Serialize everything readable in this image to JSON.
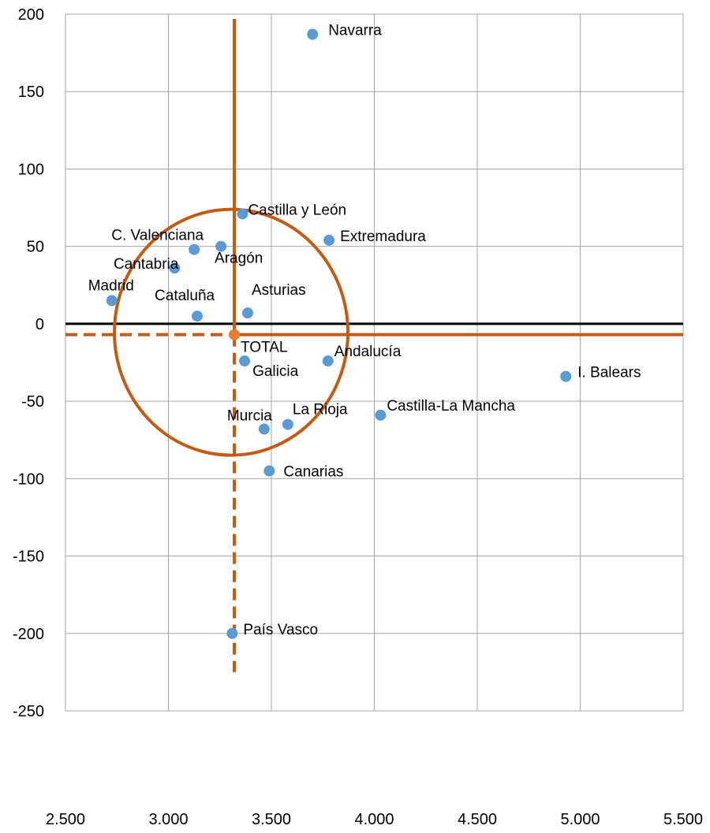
{
  "chart_data": {
    "type": "scatter",
    "title": "",
    "xlabel": "",
    "ylabel": "",
    "xlim": [
      2500,
      5500
    ],
    "ylim": [
      -250,
      200
    ],
    "x_ticks": [
      2500,
      3000,
      3500,
      4000,
      4500,
      5000,
      5500
    ],
    "x_tick_labels": [
      "2.500",
      "3.000",
      "3.500",
      "4.000",
      "4.500",
      "5.000",
      "5.500"
    ],
    "y_ticks": [
      -250,
      -200,
      -150,
      -100,
      -50,
      0,
      50,
      100,
      150,
      200
    ],
    "y_tick_labels": [
      "-250",
      "-200",
      "-150",
      "-100",
      "-50",
      "0",
      "50",
      "100",
      "150",
      "200"
    ],
    "grid": true,
    "colors": {
      "points": "#5B9BD5",
      "reference": "#C55A11",
      "reference_point": "#ED7D31",
      "zero_line": "#000000",
      "grid": "#A6A6A6"
    },
    "points": [
      {
        "label": "Navarra",
        "x": 3700,
        "y": 187
      },
      {
        "label": "Castilla y León",
        "x": 3360,
        "y": 71
      },
      {
        "label": "Extremadura",
        "x": 3780,
        "y": 54
      },
      {
        "label": "C. Valenciana",
        "x": 3125,
        "y": 48
      },
      {
        "label": "Aragón",
        "x": 3255,
        "y": 50
      },
      {
        "label": "Cantabria",
        "x": 3030,
        "y": 36
      },
      {
        "label": "Madrid",
        "x": 2725,
        "y": 15
      },
      {
        "label": "Cataluña",
        "x": 3140,
        "y": 5
      },
      {
        "label": "Asturias",
        "x": 3385,
        "y": 7
      },
      {
        "label": "Andalucía",
        "x": 3775,
        "y": -24
      },
      {
        "label": "Galicia",
        "x": 3370,
        "y": -24
      },
      {
        "label": "I. Balears",
        "x": 4930,
        "y": -34
      },
      {
        "label": "Castilla-La Mancha",
        "x": 4030,
        "y": -59
      },
      {
        "label": "La Rioja",
        "x": 3580,
        "y": -65
      },
      {
        "label": "Murcia",
        "x": 3465,
        "y": -68
      },
      {
        "label": "Canarias",
        "x": 3490,
        "y": -95
      },
      {
        "label": "País Vasco",
        "x": 3310,
        "y": -200
      }
    ],
    "reference": {
      "label": "TOTAL",
      "x": 3320,
      "y": -7,
      "vertical_line_solid": [
        -7,
        197
      ],
      "vertical_line_dashed": [
        -225,
        -7
      ],
      "horizontal_line_solid": [
        3320,
        5500
      ],
      "horizontal_line_dashed": [
        2500,
        3320
      ]
    }
  }
}
